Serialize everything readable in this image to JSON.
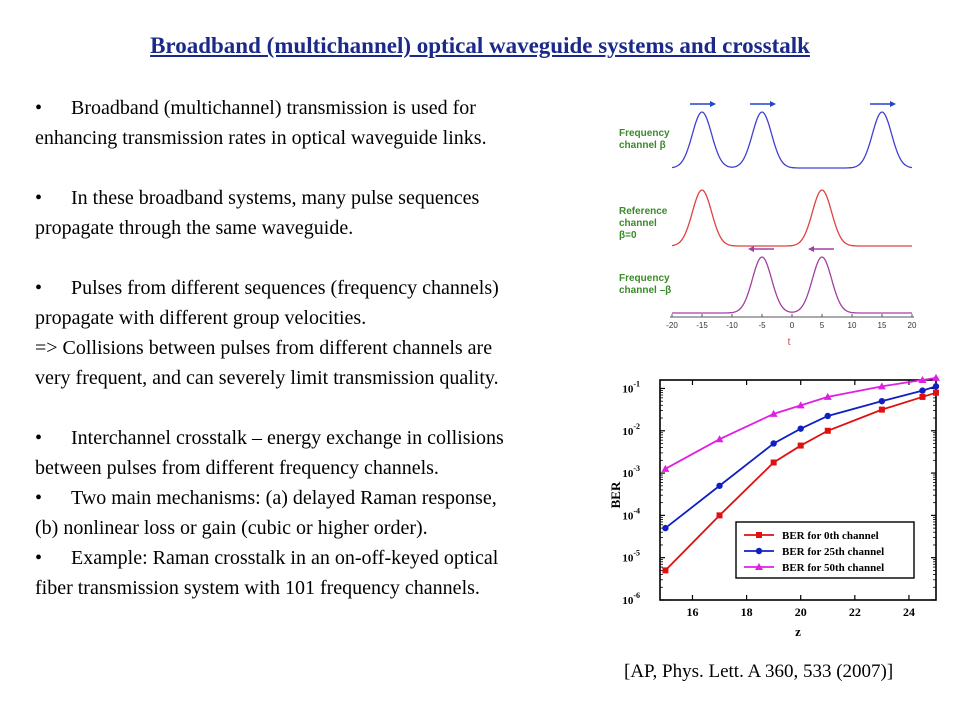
{
  "slide": {
    "title": "Broadband (multichannel) optical waveguide systems and crosstalk",
    "bullet_symbol": "•",
    "lines": [
      {
        "text": "Broadband (multichannel) transmission is used for",
        "bullet": true
      },
      {
        "text": "enhancing transmission rates in optical waveguide links.",
        "bullet": false
      },
      {
        "gap": true
      },
      {
        "text": "In these broadband systems, many pulse sequences",
        "bullet": true
      },
      {
        "text": "propagate through the same waveguide.",
        "bullet": false
      },
      {
        "gap": true
      },
      {
        "text": "Pulses from different sequences (frequency channels)",
        "bullet": true
      },
      {
        "text": "propagate with different group velocities.",
        "bullet": false
      },
      {
        "text": "=> Collisions between pulses from different channels are",
        "bullet": false
      },
      {
        "text": "very frequent, and can  severely limit transmission quality.",
        "bullet": false
      },
      {
        "gap": true
      },
      {
        "text": "Interchannel crosstalk – energy exchange in collisions",
        "bullet": true
      },
      {
        "text": "between pulses from different frequency channels.",
        "bullet": false
      },
      {
        "text": "Two main mechanisms: (a) delayed Raman response,",
        "bullet": true
      },
      {
        "text": "(b) nonlinear loss or gain (cubic or higher order).",
        "bullet": false
      },
      {
        "text": "Example: Raman crosstalk in an on-off-keyed optical",
        "bullet": true
      },
      {
        "text": "fiber transmission system with 101 frequency channels.",
        "bullet": false
      }
    ],
    "citation": "[AP, Phys. Lett. A 360, 533 (2007)]"
  },
  "pulse_figure": {
    "panels": [
      {
        "label_lines": [
          "Frequency",
          "channel β"
        ],
        "color": "#4040d0",
        "pulse_centers": [
          -15,
          -5,
          15
        ],
        "arrow": "right"
      },
      {
        "label_lines": [
          "Reference",
          "channel",
          "β=0"
        ],
        "color": "#e04040",
        "pulse_centers": [
          -15,
          5
        ],
        "arrow": "none"
      },
      {
        "label_lines": [
          "Frequency",
          "channel –β"
        ],
        "color": "#a040a0",
        "pulse_centers": [
          -5,
          5
        ],
        "arrow": "left"
      }
    ],
    "x_ticks": [
      "-20",
      "-15",
      "-10",
      "-5",
      "0",
      "5",
      "10",
      "15",
      "20"
    ],
    "x_range": [
      -20,
      20
    ],
    "xlabel": "t",
    "label_color": "#3a8a2a",
    "arrow_color": "#2244cc",
    "arrow_left_color": "#a040a0"
  },
  "chart_data": {
    "type": "line",
    "xlabel": "z",
    "ylabel": "BER",
    "xlim": [
      14.8,
      25
    ],
    "ylim_log10": [
      -6,
      -0.8
    ],
    "x_ticks": [
      16,
      18,
      20,
      22,
      24
    ],
    "y_ticks": [
      {
        "exp": -1,
        "base": "10",
        "sup": "-1"
      },
      {
        "exp": -2,
        "base": "10",
        "sup": "-2"
      },
      {
        "exp": -3,
        "base": "10",
        "sup": "-3"
      },
      {
        "exp": -4,
        "base": "10",
        "sup": "-4"
      },
      {
        "exp": -5,
        "base": "10",
        "sup": "-5"
      },
      {
        "exp": -6,
        "base": "10",
        "sup": "-6"
      }
    ],
    "legend_position": "bottom-right",
    "series": [
      {
        "name": "BER for  0th channel",
        "color": "#e01010",
        "marker": "square",
        "x": [
          15,
          17,
          19,
          20,
          21,
          23,
          24.5,
          25
        ],
        "log10_y": [
          -5.3,
          -4.0,
          -2.75,
          -2.35,
          -2.0,
          -1.5,
          -1.2,
          -1.1
        ]
      },
      {
        "name": "BER for  25th channel",
        "color": "#1020c0",
        "marker": "circle",
        "x": [
          15,
          17,
          19,
          20,
          21,
          23,
          24.5,
          25
        ],
        "log10_y": [
          -4.3,
          -3.3,
          -2.3,
          -1.95,
          -1.65,
          -1.3,
          -1.05,
          -0.95
        ]
      },
      {
        "name": "BER for  50th channel",
        "color": "#e020e0",
        "marker": "triangle",
        "x": [
          15,
          17,
          19,
          20,
          21,
          23,
          24.5,
          25
        ],
        "log10_y": [
          -2.9,
          -2.2,
          -1.6,
          -1.4,
          -1.2,
          -0.95,
          -0.8,
          -0.75
        ]
      }
    ]
  }
}
